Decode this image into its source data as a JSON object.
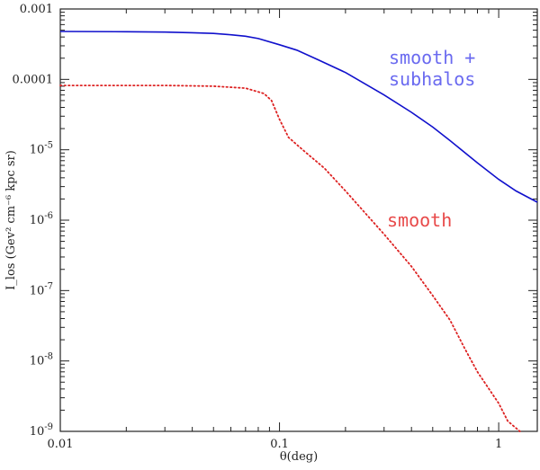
{
  "chart_data": {
    "type": "line",
    "title": "",
    "xlabel": "θ(deg)",
    "ylabel": "I_los (Gev² cm⁻⁶ kpc sr)",
    "xscale": "log",
    "yscale": "log",
    "xlim": [
      0.01,
      1.5
    ],
    "ylim": [
      1e-09,
      0.001
    ],
    "grid": false,
    "legend": "none",
    "x_ticks": [
      {
        "value": 0.01,
        "label": "0.01"
      },
      {
        "value": 0.1,
        "label": "0.1"
      },
      {
        "value": 1,
        "label": "1"
      }
    ],
    "y_ticks": [
      {
        "value": 0.001,
        "label": "0.001"
      },
      {
        "value": 0.0001,
        "label": "0.0001"
      },
      {
        "value": 1e-05,
        "label": "10",
        "exp": "-5"
      },
      {
        "value": 1e-06,
        "label": "10",
        "exp": "-6"
      },
      {
        "value": 1e-07,
        "label": "10",
        "exp": "-7"
      },
      {
        "value": 1e-08,
        "label": "10",
        "exp": "-8"
      },
      {
        "value": 1e-09,
        "label": "10",
        "exp": "-9"
      }
    ],
    "series": [
      {
        "style": "solid",
        "color": "#1010cc",
        "points": [
          [
            0.01,
            0.00048
          ],
          [
            0.02,
            0.000475
          ],
          [
            0.03,
            0.00047
          ],
          [
            0.04,
            0.00046
          ],
          [
            0.05,
            0.00045
          ],
          [
            0.06,
            0.00043
          ],
          [
            0.07,
            0.00041
          ],
          [
            0.08,
            0.00038
          ],
          [
            0.1,
            0.00031
          ],
          [
            0.12,
            0.00026
          ],
          [
            0.15,
            0.00019
          ],
          [
            0.2,
            0.000125
          ],
          [
            0.3,
            6e-05
          ],
          [
            0.4,
            3.4e-05
          ],
          [
            0.5,
            2.1e-05
          ],
          [
            0.6,
            1.35e-05
          ],
          [
            0.8,
            6.5e-06
          ],
          [
            1.0,
            3.8e-06
          ],
          [
            1.2,
            2.6e-06
          ],
          [
            1.5,
            1.8e-06
          ]
        ]
      },
      {
        "style": "dotted",
        "color": "#dd2222",
        "points": [
          [
            0.01,
            8.2e-05
          ],
          [
            0.03,
            8.2e-05
          ],
          [
            0.05,
            8e-05
          ],
          [
            0.07,
            7.5e-05
          ],
          [
            0.085,
            6.3e-05
          ],
          [
            0.092,
            5e-05
          ],
          [
            0.1,
            2.7e-05
          ],
          [
            0.11,
            1.5e-05
          ],
          [
            0.13,
            9.5e-06
          ],
          [
            0.16,
            5.5e-06
          ],
          [
            0.2,
            2.6e-06
          ],
          [
            0.3,
            6.3e-07
          ],
          [
            0.4,
            2.2e-07
          ],
          [
            0.5,
            8.5e-08
          ],
          [
            0.6,
            3.8e-08
          ],
          [
            0.7,
            1.5e-08
          ],
          [
            0.8,
            7e-09
          ],
          [
            1.0,
            2.5e-09
          ],
          [
            1.1,
            1.4e-09
          ],
          [
            1.25,
            1e-09
          ]
        ]
      }
    ],
    "annotations": [
      {
        "lines": [
          "smooth +",
          "subhalos"
        ],
        "color": "#6a6af0"
      },
      {
        "lines": [
          "smooth"
        ],
        "color": "#e84a4a"
      }
    ]
  }
}
